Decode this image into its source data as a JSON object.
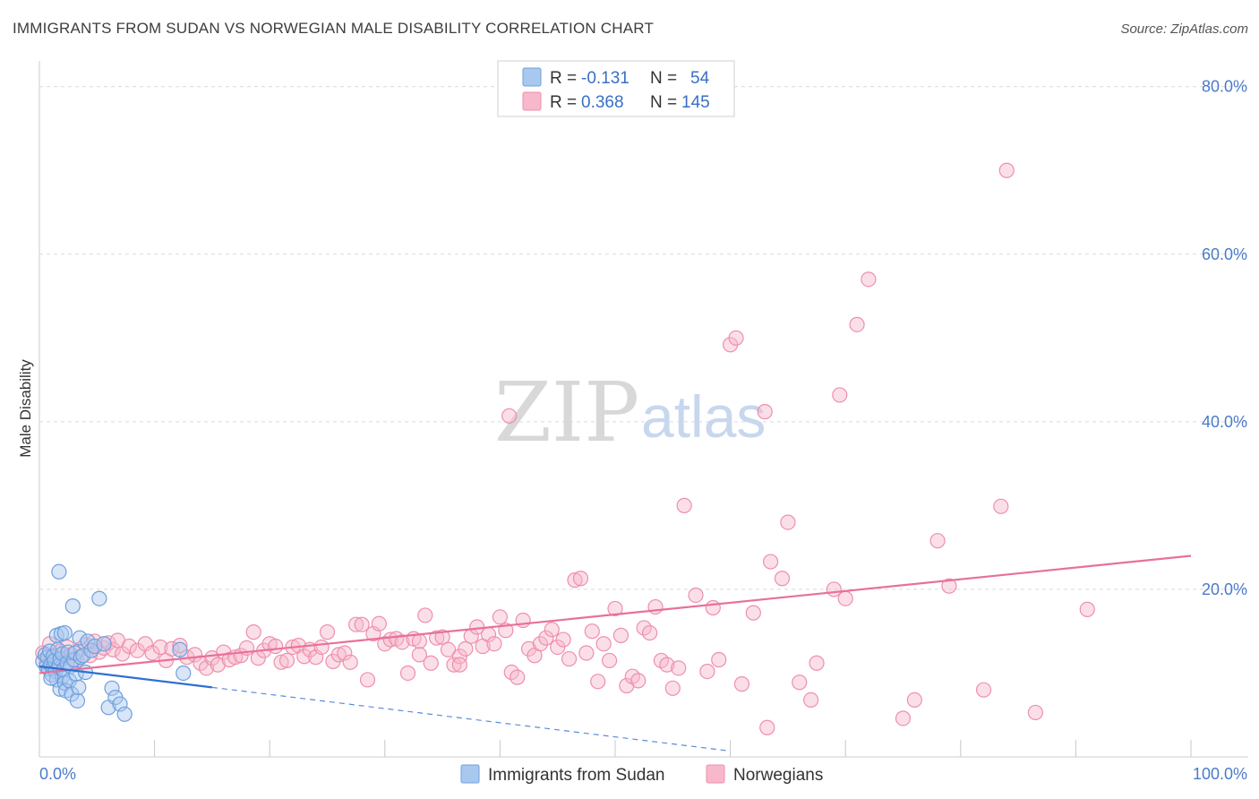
{
  "title": "IMMIGRANTS FROM SUDAN VS NORWEGIAN MALE DISABILITY CORRELATION CHART",
  "source": "Source: ZipAtlas.com",
  "watermark": {
    "part1": "ZIP",
    "part2": "atlas"
  },
  "legend": {
    "rows": [
      {
        "r_label": "R =",
        "r_value": "-0.131",
        "n_label": "N =",
        "n_value": "54"
      },
      {
        "r_label": "R =",
        "r_value": "0.368",
        "n_label": "N =",
        "n_value": "145"
      }
    ]
  },
  "bottom_legend": {
    "sudan": "Immigrants from Sudan",
    "norwegians": "Norwegians"
  },
  "colors": {
    "sudan_fill": "#a8c8f0",
    "sudan_stroke": "#6f9fdc",
    "sudan_line": "#2f6fd0",
    "norw_fill": "#f7b8cb",
    "norw_stroke": "#ee8fab",
    "norw_line": "#e8709a",
    "tick_text": "#4a7bc8",
    "grid": "#d9d9d9"
  },
  "chart_data": {
    "type": "scatter",
    "title": "IMMIGRANTS FROM SUDAN VS NORWEGIAN MALE DISABILITY CORRELATION CHART",
    "xlabel": "",
    "ylabel": "Male Disability",
    "xlim": [
      0,
      100
    ],
    "ylim": [
      0,
      82
    ],
    "x_tick_labels": [
      "0.0%",
      "100.0%"
    ],
    "y_tick_labels": [
      "20.0%",
      "40.0%",
      "60.0%",
      "80.0%"
    ],
    "y_ticks": [
      20,
      40,
      60,
      80
    ],
    "grid": "horizontal dashed",
    "legend_position": "top-center",
    "series": [
      {
        "name": "Immigrants from Sudan",
        "r": -0.131,
        "n": 54,
        "trend": {
          "x0": 0,
          "y0": 10.8,
          "x1": 15,
          "y1": 8.3,
          "dashed_to_x": 60,
          "dashed_to_y": 0.7
        },
        "points": [
          [
            0.3,
            11.4
          ],
          [
            0.5,
            12.2
          ],
          [
            0.6,
            10.8
          ],
          [
            0.7,
            11.9
          ],
          [
            0.8,
            10.5
          ],
          [
            0.9,
            12.6
          ],
          [
            1.0,
            11.0
          ],
          [
            1.1,
            9.8
          ],
          [
            1.2,
            10.6
          ],
          [
            1.2,
            12.0
          ],
          [
            1.3,
            11.5
          ],
          [
            1.4,
            10.2
          ],
          [
            1.5,
            14.5
          ],
          [
            1.5,
            9.2
          ],
          [
            1.6,
            12.8
          ],
          [
            1.7,
            10.9
          ],
          [
            1.8,
            8.1
          ],
          [
            1.8,
            11.7
          ],
          [
            1.9,
            14.7
          ],
          [
            2.0,
            9.6
          ],
          [
            2.0,
            12.3
          ],
          [
            2.1,
            10.4
          ],
          [
            2.2,
            8.8
          ],
          [
            2.3,
            7.9
          ],
          [
            2.4,
            11.2
          ],
          [
            2.5,
            12.5
          ],
          [
            2.6,
            9.1
          ],
          [
            2.7,
            10.8
          ],
          [
            2.8,
            7.5
          ],
          [
            2.9,
            18.0
          ],
          [
            3.0,
            11.6
          ],
          [
            3.1,
            12.4
          ],
          [
            3.2,
            9.9
          ],
          [
            3.3,
            6.7
          ],
          [
            3.4,
            8.3
          ],
          [
            3.5,
            14.2
          ],
          [
            3.6,
            11.9
          ],
          [
            3.8,
            12.1
          ],
          [
            4.0,
            10.1
          ],
          [
            4.2,
            13.8
          ],
          [
            4.5,
            12.7
          ],
          [
            4.8,
            13.2
          ],
          [
            5.2,
            18.9
          ],
          [
            5.6,
            13.5
          ],
          [
            6.0,
            5.9
          ],
          [
            6.3,
            8.2
          ],
          [
            6.6,
            7.1
          ],
          [
            7.0,
            6.3
          ],
          [
            7.4,
            5.1
          ],
          [
            1.7,
            22.1
          ],
          [
            12.5,
            10.0
          ],
          [
            12.2,
            12.8
          ],
          [
            2.2,
            14.8
          ],
          [
            1.0,
            9.4
          ]
        ]
      },
      {
        "name": "Norwegians",
        "r": 0.368,
        "n": 145,
        "trend": {
          "x0": 0,
          "y0": 10.0,
          "x1": 100,
          "y1": 24.0
        },
        "points": [
          [
            0.3,
            12.4
          ],
          [
            0.6,
            11.2
          ],
          [
            0.9,
            13.5
          ],
          [
            1.2,
            12.0
          ],
          [
            1.5,
            10.9
          ],
          [
            1.8,
            12.6
          ],
          [
            2.1,
            11.8
          ],
          [
            2.4,
            13.1
          ],
          [
            2.8,
            12.2
          ],
          [
            3.2,
            11.5
          ],
          [
            3.6,
            12.9
          ],
          [
            4.0,
            13.4
          ],
          [
            4.4,
            12.1
          ],
          [
            4.8,
            13.8
          ],
          [
            5.2,
            12.5
          ],
          [
            5.6,
            13.0
          ],
          [
            6.0,
            13.6
          ],
          [
            6.4,
            12.8
          ],
          [
            6.8,
            13.9
          ],
          [
            7.2,
            12.3
          ],
          [
            7.8,
            13.2
          ],
          [
            8.5,
            12.7
          ],
          [
            9.2,
            13.5
          ],
          [
            9.8,
            12.4
          ],
          [
            10.5,
            13.1
          ],
          [
            11.0,
            11.5
          ],
          [
            11.5,
            12.9
          ],
          [
            12.2,
            13.3
          ],
          [
            12.8,
            11.9
          ],
          [
            13.5,
            12.2
          ],
          [
            14.0,
            11.2
          ],
          [
            14.5,
            10.6
          ],
          [
            15.0,
            11.8
          ],
          [
            15.5,
            11.0
          ],
          [
            16.0,
            12.5
          ],
          [
            16.5,
            11.6
          ],
          [
            17.0,
            11.9
          ],
          [
            17.5,
            12.1
          ],
          [
            18.0,
            13.0
          ],
          [
            18.6,
            14.9
          ],
          [
            19.0,
            11.8
          ],
          [
            19.5,
            12.7
          ],
          [
            20.0,
            13.5
          ],
          [
            20.5,
            13.2
          ],
          [
            21.0,
            11.3
          ],
          [
            21.5,
            11.5
          ],
          [
            22.0,
            13.1
          ],
          [
            22.5,
            13.3
          ],
          [
            23.0,
            12.0
          ],
          [
            23.5,
            12.8
          ],
          [
            24.0,
            11.9
          ],
          [
            24.5,
            13.1
          ],
          [
            25.0,
            14.9
          ],
          [
            25.5,
            11.4
          ],
          [
            26.0,
            12.2
          ],
          [
            26.5,
            12.4
          ],
          [
            27.0,
            11.3
          ],
          [
            27.5,
            15.8
          ],
          [
            28.0,
            15.8
          ],
          [
            28.5,
            9.2
          ],
          [
            29.0,
            14.7
          ],
          [
            29.5,
            15.9
          ],
          [
            30.0,
            13.5
          ],
          [
            30.5,
            14.0
          ],
          [
            31.0,
            14.1
          ],
          [
            31.5,
            13.7
          ],
          [
            32.0,
            10.0
          ],
          [
            32.5,
            14.1
          ],
          [
            33.0,
            13.8
          ],
          [
            33.5,
            16.9
          ],
          [
            34.0,
            11.2
          ],
          [
            34.5,
            14.2
          ],
          [
            35.0,
            14.3
          ],
          [
            35.5,
            12.8
          ],
          [
            36.0,
            11.0
          ],
          [
            36.5,
            12.0
          ],
          [
            37.0,
            12.9
          ],
          [
            37.5,
            14.4
          ],
          [
            38.0,
            15.5
          ],
          [
            38.5,
            13.2
          ],
          [
            39.0,
            14.6
          ],
          [
            39.5,
            13.5
          ],
          [
            40.0,
            16.7
          ],
          [
            40.5,
            15.1
          ],
          [
            41.0,
            10.1
          ],
          [
            41.5,
            9.5
          ],
          [
            42.0,
            16.3
          ],
          [
            42.5,
            12.9
          ],
          [
            43.0,
            12.1
          ],
          [
            43.5,
            13.5
          ],
          [
            44.0,
            14.2
          ],
          [
            44.5,
            15.2
          ],
          [
            45.0,
            13.1
          ],
          [
            45.5,
            14.0
          ],
          [
            46.0,
            11.7
          ],
          [
            46.5,
            21.1
          ],
          [
            47.0,
            21.3
          ],
          [
            47.5,
            12.4
          ],
          [
            48.0,
            15.0
          ],
          [
            48.5,
            9.0
          ],
          [
            49.0,
            13.5
          ],
          [
            49.5,
            11.5
          ],
          [
            50.0,
            17.7
          ],
          [
            50.5,
            14.5
          ],
          [
            51.0,
            8.5
          ],
          [
            51.5,
            9.6
          ],
          [
            52.0,
            9.1
          ],
          [
            52.5,
            15.4
          ],
          [
            53.0,
            14.8
          ],
          [
            53.5,
            17.9
          ],
          [
            54.0,
            11.5
          ],
          [
            54.5,
            11.0
          ],
          [
            55.0,
            8.2
          ],
          [
            55.5,
            10.6
          ],
          [
            56.0,
            30.0
          ],
          [
            57.0,
            19.3
          ],
          [
            58.0,
            10.2
          ],
          [
            58.5,
            17.8
          ],
          [
            59.0,
            11.6
          ],
          [
            60.0,
            49.2
          ],
          [
            61.0,
            8.7
          ],
          [
            62.0,
            17.2
          ],
          [
            63.0,
            41.2
          ],
          [
            63.5,
            23.3
          ],
          [
            64.5,
            21.3
          ],
          [
            65.0,
            28.0
          ],
          [
            66.0,
            8.9
          ],
          [
            67.0,
            6.8
          ],
          [
            67.5,
            11.2
          ],
          [
            69.0,
            20.0
          ],
          [
            69.5,
            43.2
          ],
          [
            70.0,
            18.9
          ],
          [
            71.0,
            51.6
          ],
          [
            72.0,
            57.0
          ],
          [
            75.0,
            4.6
          ],
          [
            76.0,
            6.8
          ],
          [
            78.0,
            25.8
          ],
          [
            79.0,
            20.4
          ],
          [
            82.0,
            8.0
          ],
          [
            83.5,
            29.9
          ],
          [
            84.0,
            70.0
          ],
          [
            86.5,
            5.3
          ],
          [
            91.0,
            17.6
          ],
          [
            33.0,
            12.2
          ],
          [
            40.8,
            40.7
          ],
          [
            63.2,
            3.5
          ],
          [
            60.5,
            50.0
          ],
          [
            36.5,
            11.0
          ]
        ]
      }
    ]
  }
}
